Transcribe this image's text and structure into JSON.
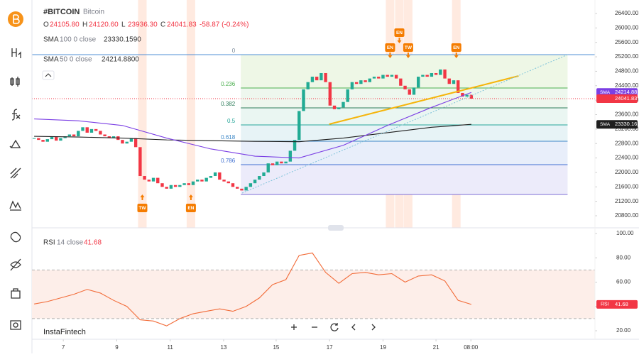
{
  "header": {
    "symbol": "#BITCOIN",
    "name": "Bitcoin",
    "ohlc": [
      {
        "key": "O",
        "value": "24105.80"
      },
      {
        "key": "H",
        "value": "24120.60"
      },
      {
        "key": "L",
        "value": "23936.30"
      },
      {
        "key": "C",
        "value": "24041.83"
      }
    ],
    "change": "-58.87 (-0.24%)",
    "indicators": [
      {
        "label": "SMA",
        "params": "100 0 close",
        "value": "23330.1590"
      },
      {
        "label": "SMA",
        "params": "50 0 close",
        "value": "24214.8800"
      }
    ],
    "brand": "InstaFintech"
  },
  "chart_data": [
    {
      "type": "candlestick",
      "xlim": [
        -0.5,
        127
      ],
      "xticks": [
        {
          "value": 6.6,
          "label": "7"
        },
        {
          "value": 18.7,
          "label": "9"
        },
        {
          "value": 30.8,
          "label": "11"
        },
        {
          "value": 42.9,
          "label": "13"
        },
        {
          "value": 54.8,
          "label": "15"
        },
        {
          "value": 66.9,
          "label": "17"
        },
        {
          "value": 79,
          "label": "19"
        },
        {
          "value": 91,
          "label": "21"
        },
        {
          "value": 98.9,
          "label": "08:00"
        }
      ],
      "ylim": [
        20800,
        26400
      ],
      "yticks": [
        {
          "value": 26400,
          "label": "26400.00"
        },
        {
          "value": 26000,
          "label": "26000.00"
        },
        {
          "value": 25600,
          "label": "25600.00"
        },
        {
          "value": 25200,
          "label": "25200.00"
        },
        {
          "value": 24800,
          "label": "24800.00"
        },
        {
          "value": 24400,
          "label": "24400.00"
        },
        {
          "value": 24000,
          "label": "24000.00"
        },
        {
          "value": 23600,
          "label": "23600.00"
        },
        {
          "value": 23200,
          "label": "23200.00"
        },
        {
          "value": 22800,
          "label": "22800.00"
        },
        {
          "value": 22400,
          "label": "22400.00"
        },
        {
          "value": 22000,
          "label": "22000.00"
        },
        {
          "value": 21600,
          "label": "21600.00"
        },
        {
          "value": 21200,
          "label": "21200.00"
        },
        {
          "value": 20800,
          "label": "20800.00"
        }
      ],
      "up_color": "#22ab94",
      "down_color": "#f23645",
      "series": [
        {
          "name": "BITCOIN",
          "values": [
            22950,
            22900,
            22850,
            22920,
            22980,
            22880,
            22950,
            23000,
            23050,
            23000,
            23150,
            23250,
            23100,
            23200,
            23150,
            23050,
            23000,
            22950,
            23000,
            22900,
            22800,
            22850,
            22950,
            22700,
            21900,
            21800,
            21750,
            21850,
            21700,
            21600,
            21550,
            21650,
            21600,
            21650,
            21700,
            21650,
            21750,
            21800,
            21750,
            21850,
            21900,
            22000,
            21800,
            21750,
            21700,
            21600,
            21550,
            21500,
            21600,
            21700,
            21800,
            21900,
            22000,
            22250,
            22200,
            22300,
            22250,
            22300,
            22600,
            22900,
            23700,
            24300,
            24500,
            24650,
            24550,
            24750,
            24500,
            23850,
            23750,
            23800,
            23950,
            24300,
            24500,
            24450,
            24550,
            24500,
            24600,
            24650,
            24600,
            24700,
            24650,
            24700,
            24600,
            24400,
            24300,
            24150,
            24350,
            24650,
            24700,
            24650,
            24750,
            24700,
            24850,
            24600,
            24450,
            24550,
            24200,
            24100,
            24150,
            24041.83
          ]
        },
        {
          "name": "SMA 100",
          "color": "#1e1e1e",
          "x": [
            0,
            10,
            20,
            30,
            40,
            50,
            60,
            70,
            80,
            90,
            99
          ],
          "values": [
            23000,
            22980,
            22950,
            22900,
            22880,
            22860,
            22850,
            22950,
            23100,
            23250,
            23330.16
          ]
        },
        {
          "name": "SMA 50",
          "color": "#7b3fe4",
          "x": [
            0,
            10,
            20,
            30,
            40,
            50,
            60,
            70,
            80,
            90,
            99
          ],
          "values": [
            23480,
            23430,
            23300,
            22950,
            22650,
            22450,
            22400,
            22750,
            23300,
            23800,
            24214.88
          ]
        }
      ],
      "hline": {
        "value": 25260,
        "color": "#4f8fd6"
      },
      "close_line": {
        "value": 24041.83,
        "color": "#f23645"
      },
      "fib": {
        "xrange": [
          46.8,
          120.8
        ],
        "levels": [
          {
            "label": "0",
            "value": 25260,
            "color": "#7a8a99",
            "zone": "#eef7e6"
          },
          {
            "label": "0.236",
            "value": 24337,
            "color": "#4caf50",
            "zone": "#eef7ee"
          },
          {
            "label": "0.382",
            "value": 23786,
            "color": "#2e7d5b",
            "zone": "#eaf6f2"
          },
          {
            "label": "0.5",
            "value": 23315,
            "color": "#26a69a",
            "zone": "#e7f3f6"
          },
          {
            "label": "0.618",
            "value": 22864,
            "color": "#3b86c6",
            "zone": "#e8eefa"
          },
          {
            "label": "0.786",
            "value": 22215,
            "color": "#3f6fd1",
            "zone": "#ecebfa"
          },
          {
            "label": null,
            "value": 21390,
            "color": "#7e6fd6",
            "zone": null
          }
        ]
      },
      "trendlines": [
        {
          "color": "#f5b50c",
          "points": [
            [
              66.8,
              23335
            ],
            [
              109.7,
              24671
            ]
          ],
          "dash": false
        },
        {
          "color": "#7fc3da",
          "points": [
            [
              47.1,
              21429
            ],
            [
              120.8,
              25260
            ]
          ],
          "dash": true
        }
      ],
      "events": [
        {
          "label": "TW",
          "x": 24.5,
          "position": "below"
        },
        {
          "label": "EN",
          "x": 35.5,
          "position": "below"
        },
        {
          "label": "EN",
          "x": 80.6,
          "position": "above"
        },
        {
          "label": "EN",
          "x": 82.7,
          "position": "above"
        },
        {
          "label": "TW",
          "x": 84.7,
          "position": "above"
        },
        {
          "label": "EN",
          "x": 95.6,
          "position": "above"
        }
      ],
      "price_tags": [
        {
          "name": "SMA",
          "value": 24214.88,
          "color": "#7b3fe4"
        },
        {
          "name": null,
          "value": 24041.83,
          "color": "#f23645"
        },
        {
          "name": "SMA",
          "value": 23330.16,
          "color": "#1e1e1e"
        }
      ]
    },
    {
      "type": "line",
      "title": "RSI",
      "params": "14 close",
      "value_label": "41.68",
      "xlim": [
        -0.5,
        127
      ],
      "ylim": [
        20,
        100
      ],
      "yticks": [
        {
          "value": 100,
          "label": "100.00"
        },
        {
          "value": 80,
          "label": "80.00"
        },
        {
          "value": 60,
          "label": "60.00"
        },
        {
          "value": 40,
          "label": "40.00"
        },
        {
          "value": 20,
          "label": "20.00"
        }
      ],
      "band": [
        30,
        70
      ],
      "series": [
        {
          "name": "RSI",
          "color": "#f26b38",
          "x": [
            0,
            3,
            6,
            9,
            12,
            15,
            18,
            21,
            24,
            27,
            30,
            33,
            36,
            39,
            42,
            45,
            48,
            51,
            54,
            57,
            60,
            63,
            66,
            69,
            72,
            75,
            78,
            81,
            84,
            87,
            90,
            93,
            96,
            99
          ],
          "values": [
            42,
            44,
            47,
            50,
            54,
            51,
            45,
            40,
            29,
            28,
            24,
            30,
            34,
            36,
            38,
            36,
            40,
            47,
            58,
            62,
            82,
            84,
            68,
            59,
            67,
            68,
            66,
            67,
            60,
            65,
            66,
            61,
            45,
            41.68
          ]
        }
      ],
      "tag": {
        "name": "RSI",
        "value": 41.68,
        "color": "#f23645"
      }
    }
  ]
}
